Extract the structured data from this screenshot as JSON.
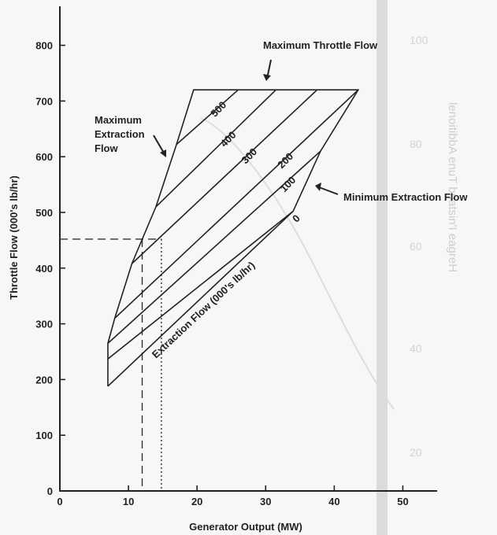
{
  "chart_data": {
    "type": "line",
    "title": "",
    "xlabel": "Generator Output (MW)",
    "ylabel": "Throttle Flow (000's lb/hr)",
    "xlim": [
      0,
      55
    ],
    "ylim": [
      0,
      870
    ],
    "xticks": [
      0,
      10,
      20,
      30,
      40,
      50
    ],
    "yticks": [
      0,
      100,
      200,
      300,
      400,
      500,
      600,
      700,
      800
    ],
    "series_unit_label": "Extraction Flow (000's lb/hr)",
    "series": [
      {
        "name": "0",
        "points": [
          [
            7,
            237
          ],
          [
            34,
            502
          ]
        ]
      },
      {
        "name": "100",
        "points": [
          [
            7,
            265
          ],
          [
            38,
            610
          ]
        ]
      },
      {
        "name": "200",
        "points": [
          [
            8,
            310
          ],
          [
            43.5,
            720
          ]
        ]
      },
      {
        "name": "300",
        "points": [
          [
            10.5,
            408
          ],
          [
            37.5,
            720
          ]
        ]
      },
      {
        "name": "400",
        "points": [
          [
            14,
            510
          ],
          [
            31.5,
            720
          ]
        ]
      },
      {
        "name": "500",
        "points": [
          [
            17,
            622
          ],
          [
            26,
            720
          ]
        ]
      }
    ],
    "envelope": [
      [
        7,
        188
      ],
      [
        7,
        265
      ],
      [
        8,
        310
      ],
      [
        10.5,
        408
      ],
      [
        14,
        510
      ],
      [
        17,
        622
      ],
      [
        19.5,
        720
      ],
      [
        43.5,
        720
      ],
      [
        38,
        610
      ],
      [
        34,
        502
      ],
      [
        7,
        188
      ]
    ],
    "example_lines": {
      "throttle_flow": 452,
      "output_at_max_extraction": 12,
      "output_at_min_extraction": 14.8
    },
    "annotations": {
      "max_throttle": "Maximum Throttle Flow",
      "max_extraction": [
        "Maximum",
        "Extraction",
        "Flow"
      ],
      "min_extraction": "Minimum Extraction Flow"
    }
  },
  "bleed_through": {
    "ticks": [
      "100",
      "80",
      "60",
      "40",
      "20"
    ],
    "vertical_label": "lenoitibbA enuT bnatsin'I eagreH"
  }
}
